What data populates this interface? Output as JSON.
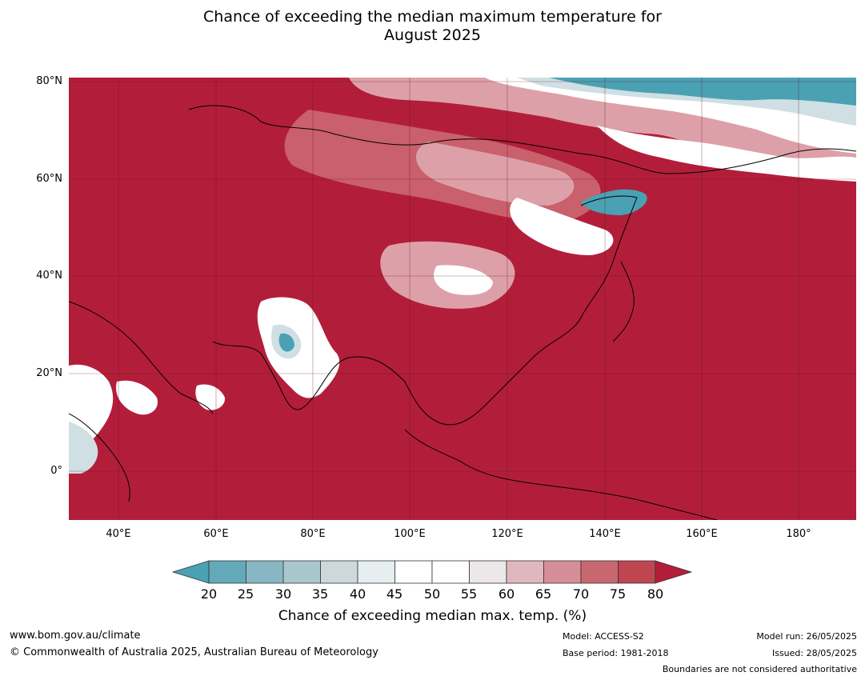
{
  "title_line1": "Chance of exceeding the median maximum temperature for",
  "title_line2": "August 2025",
  "map": {
    "lat_labels": [
      "80°N",
      "60°N",
      "40°N",
      "20°N",
      "0°"
    ],
    "lon_labels": [
      "40°E",
      "60°E",
      "80°E",
      "100°E",
      "120°E",
      "140°E",
      "160°E",
      "180°"
    ],
    "colors": {
      "high": "#b21e3a",
      "mid_high": "#c9606b",
      "pink": "#dda0a8",
      "neutral": "#ffffff",
      "light_blue": "#cfdfe3",
      "blue": "#4aa1b3"
    }
  },
  "colorbar": {
    "ticks": [
      "20",
      "25",
      "30",
      "35",
      "40",
      "45",
      "50",
      "55",
      "60",
      "65",
      "70",
      "75",
      "80"
    ],
    "colors": [
      "#62aab9",
      "#88b7c4",
      "#aac6cd",
      "#ccd8dc",
      "#e7eef0",
      "#ffffff",
      "#ffffff",
      "#ece7e8",
      "#e0b7bd",
      "#d58e98",
      "#c8676f",
      "#bf4651"
    ],
    "low_color": "#4aa1b3",
    "high_color": "#b21e3a",
    "title": "Chance of exceeding median max. temp. (%)"
  },
  "footer": {
    "website": "www.bom.gov.au/climate",
    "copyright": "© Commonwealth of Australia 2025, Australian Bureau of Meteorology",
    "model": "Model: ACCESS-S2",
    "base_period": "Base period: 1981-2018",
    "model_run": "Model run: 26/05/2025",
    "issued": "Issued: 28/05/2025",
    "boundaries": "Boundaries are not considered authoritative"
  }
}
